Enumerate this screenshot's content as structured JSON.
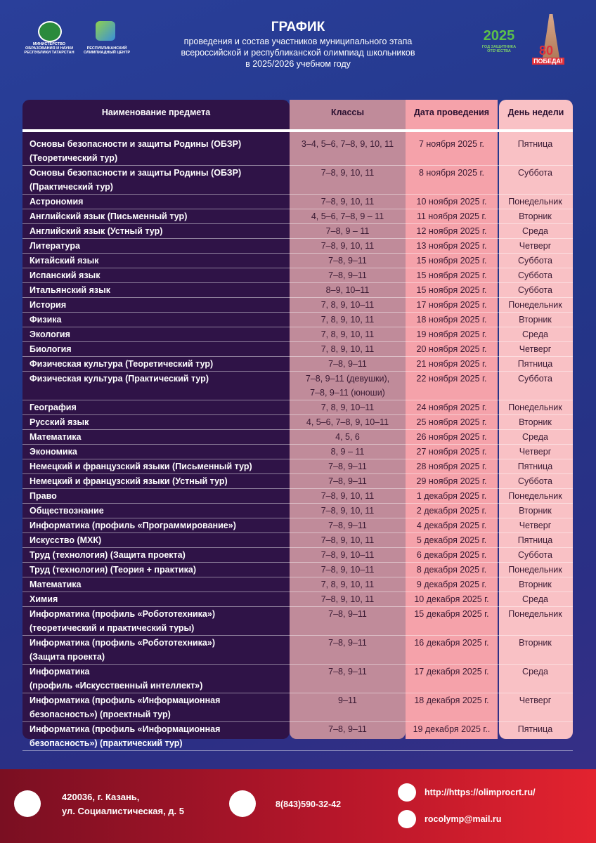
{
  "header": {
    "logo_left_1": "МИНИСТЕРСТВО\nОБРАЗОВАНИЯ И НАУКИ\nРЕСПУБЛИКИ ТАТАРСТАН",
    "logo_left_2": "РЕСПУБЛИКАНСКИЙ\nОЛИМПИАДНЫЙ ЦЕНТР",
    "title": "ГРАФИК",
    "subtitle": [
      "проведения и состав участников муниципального этапа",
      "всероссийской и республиканской олимпиад школьников",
      "в 2025/2026 учебном году"
    ],
    "logo_right_year": "2025",
    "logo_right_caption": "ГОД ЗАЩИТНИКА\nОТЕЧЕСТВА",
    "logo_victory_number": "80",
    "logo_victory_word": "ПОБЕДА!"
  },
  "table": {
    "columns": [
      "Наименование предмета",
      "Классы",
      "Дата проведения",
      "День недели"
    ],
    "rows": [
      [
        "Основы безопасности и защиты Родины (ОБЗР)\n(Теоретический тур)",
        "3–4, 5–6, 7–8, 9, 10, 11",
        "7 ноября 2025 г.",
        "Пятница"
      ],
      [
        "Основы безопасности и защиты Родины (ОБЗР)\n(Практический тур)",
        "7–8, 9, 10, 11",
        "8 ноября 2025 г.",
        "Суббота"
      ],
      [
        "Астрономия",
        "7–8, 9, 10, 11",
        "10 ноября 2025 г.",
        "Понедельник"
      ],
      [
        "Английский язык (Письменный тур)",
        "4, 5–6, 7–8, 9 – 11",
        "11 ноября 2025 г.",
        "Вторник"
      ],
      [
        "Английский язык (Устный тур)",
        "7–8, 9 – 11",
        "12 ноября 2025 г.",
        "Среда"
      ],
      [
        "Литература",
        "7–8, 9, 10, 11",
        "13 ноября 2025 г.",
        "Четверг"
      ],
      [
        "Китайский язык",
        "7–8, 9–11",
        "15 ноября 2025 г.",
        "Суббота"
      ],
      [
        "Испанский язык",
        "7–8, 9–11",
        "15 ноября 2025 г.",
        "Суббота"
      ],
      [
        "Итальянский язык",
        "8–9, 10–11",
        "15 ноября 2025 г.",
        "Суббота"
      ],
      [
        "История",
        "7, 8, 9, 10–11",
        "17 ноября 2025 г.",
        "Понедельник"
      ],
      [
        "Физика",
        "7, 8, 9, 10, 11",
        "18 ноября 2025 г.",
        "Вторник"
      ],
      [
        "Экология",
        "7, 8, 9, 10, 11",
        "19 ноября 2025 г.",
        "Среда"
      ],
      [
        "Биология",
        "7, 8, 9, 10, 11",
        "20 ноября 2025 г.",
        "Четверг"
      ],
      [
        "Физическая культура (Теоретический тур)",
        "7–8, 9–11",
        "21 ноября 2025 г.",
        "Пятница"
      ],
      [
        "Физическая культура (Практический тур)",
        "7–8, 9–11 (девушки),\n7–8, 9–11 (юноши)",
        "22 ноября 2025 г.",
        "Суббота"
      ],
      [
        "География",
        "7, 8, 9, 10–11",
        "24 ноября 2025 г.",
        "Понедельник"
      ],
      [
        "Русский язык",
        "4, 5–6, 7–8, 9, 10–11",
        "25 ноября 2025 г.",
        "Вторник"
      ],
      [
        "Математика",
        "4, 5, 6",
        "26 ноября 2025 г.",
        "Среда"
      ],
      [
        "Экономика",
        "8, 9 – 11",
        "27 ноября 2025 г.",
        "Четверг"
      ],
      [
        "Немецкий и французский языки (Письменный тур)",
        "7–8, 9–11",
        "28 ноября 2025 г.",
        "Пятница"
      ],
      [
        "Немецкий и французский языки (Устный тур)",
        "7–8, 9–11",
        "29 ноября 2025 г.",
        "Суббота"
      ],
      [
        "Право",
        "7–8, 9, 10, 11",
        "1 декабря 2025 г.",
        "Понедельник"
      ],
      [
        "Обществознание",
        "7–8, 9, 10, 11",
        "2 декабря 2025 г.",
        "Вторник"
      ],
      [
        "Информатика (профиль «Программирование»)",
        "7–8, 9–11",
        "4 декабря 2025 г.",
        "Четверг"
      ],
      [
        "Искусство (МХК)",
        "7–8, 9, 10, 11",
        "5 декабря 2025 г.",
        "Пятница"
      ],
      [
        "Труд (технология) (Защита проекта)",
        "7–8, 9, 10–11",
        "6 декабря 2025 г.",
        "Суббота"
      ],
      [
        "Труд (технология) (Теория + практика)",
        "7–8, 9, 10–11",
        "8 декабря 2025 г.",
        "Понедельник"
      ],
      [
        "Математика",
        "7, 8, 9, 10, 11",
        "9 декабря 2025 г.",
        "Вторник"
      ],
      [
        "Химия",
        "7–8, 9, 10, 11",
        "10 декабря 2025 г.",
        "Среда"
      ],
      [
        "Информатика (профиль «Робототехника»)\n(теоретический и практический туры)",
        "7–8, 9–11",
        "15 декабря 2025 г.",
        "Понедельник"
      ],
      [
        "Информатика (профиль «Робототехника»)\n(Защита проекта)",
        "7–8, 9–11",
        "16 декабря 2025 г.",
        "Вторник"
      ],
      [
        "Информатика\n(профиль «Искусственный интеллект»)",
        "7–8, 9–11",
        "17 декабря 2025 г.",
        "Среда"
      ],
      [
        "Информатика  (профиль «Информационная\nбезопасность») (проектный тур)",
        "9–11",
        "18 декабря 2025 г.",
        "Четверг"
      ],
      [
        "Информатика  (профиль «Информационная\nбезопасность») (практический тур)",
        "7–8, 9–11",
        "19 декабря 2025 г..",
        "Пятница"
      ]
    ]
  },
  "footer": {
    "address": [
      "420036, г. Казань,",
      "ул. Социалистическая, д. 5"
    ],
    "phone": "8(843)590-32-42",
    "website": "http://https://olimprocrt.ru/",
    "email": "rocolymp@mail.ru"
  }
}
